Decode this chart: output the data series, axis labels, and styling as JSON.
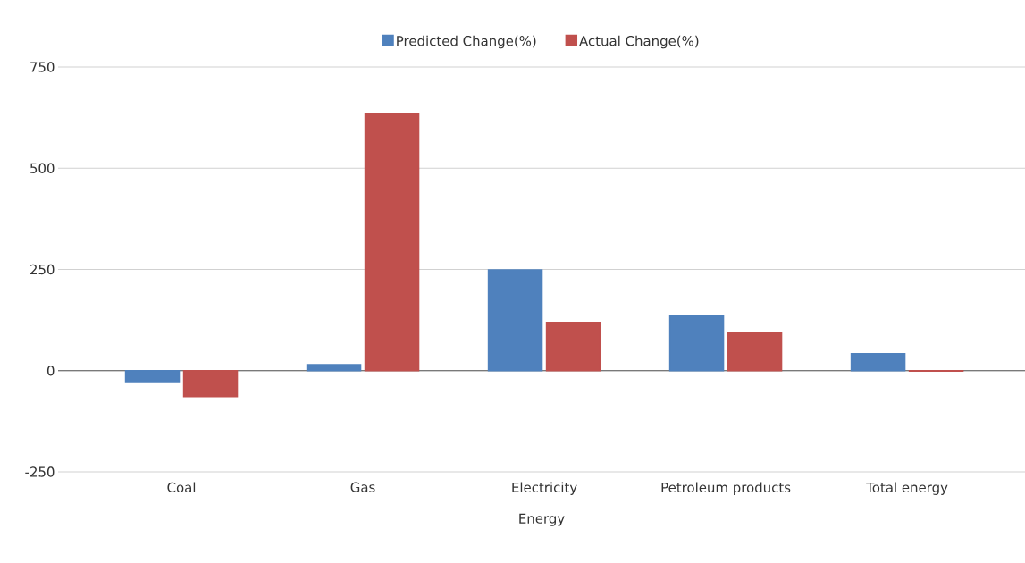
{
  "chart_data": {
    "type": "bar",
    "xlabel": "Energy",
    "categories": [
      "Coal",
      "Gas",
      "Electricity",
      "Petroleum products",
      "Total energy"
    ],
    "series": [
      {
        "name": "Predicted Change(%)",
        "color": "#4f81bd",
        "values": [
          -29,
          15,
          249,
          137,
          42
        ]
      },
      {
        "name": "Actual Change(%)",
        "color": "#c0504d",
        "values": [
          -64,
          635,
          119,
          95,
          -1
        ]
      }
    ],
    "ylim": [
      -250,
      750
    ],
    "yticks": [
      -250,
      0,
      250,
      500,
      750
    ],
    "grid": "y",
    "legend": "top"
  }
}
